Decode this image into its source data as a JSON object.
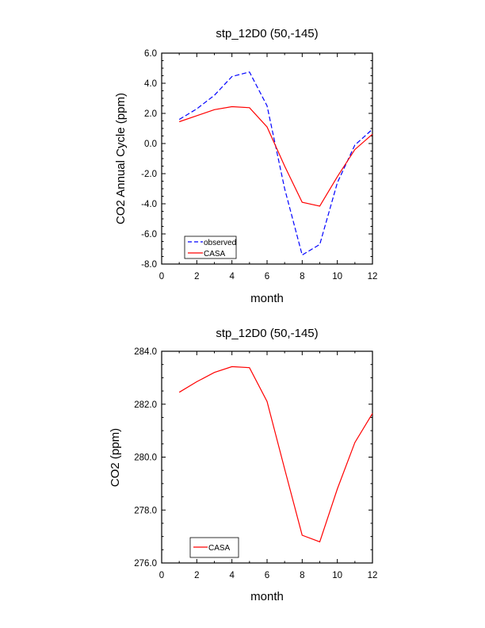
{
  "chart_data": [
    {
      "type": "line",
      "title": "stp_12D0 (50,-145)",
      "xlabel": "month",
      "ylabel": "CO2 Annual Cycle (ppm)",
      "xlim": [
        0,
        12
      ],
      "ylim": [
        -8,
        6
      ],
      "x_ticks": [
        "0",
        "2",
        "4",
        "6",
        "8",
        "10",
        "12"
      ],
      "y_ticks": [
        "-8.0",
        "-6.0",
        "-4.0",
        "-2.0",
        "0.0",
        "2.0",
        "4.0",
        "6.0"
      ],
      "x": [
        1,
        2,
        3,
        4,
        5,
        6,
        7,
        8,
        9,
        10,
        11,
        12
      ],
      "series": [
        {
          "name": "observed",
          "color": "#0000ff",
          "dash": "dashed",
          "values": [
            1.6,
            2.3,
            3.2,
            4.45,
            4.75,
            2.5,
            -3.0,
            -7.4,
            -6.7,
            -2.6,
            -0.1,
            0.95
          ]
        },
        {
          "name": "CASA",
          "color": "#ff0000",
          "dash": "solid",
          "values": [
            1.45,
            1.85,
            2.25,
            2.45,
            2.38,
            1.1,
            -1.5,
            -3.9,
            -4.15,
            -2.2,
            -0.4,
            0.62
          ]
        }
      ],
      "legend": "bottom-left"
    },
    {
      "type": "line",
      "title": "stp_12D0 (50,-145)",
      "xlabel": "month",
      "ylabel": "CO2 (ppm)",
      "xlim": [
        0,
        12
      ],
      "ylim": [
        276,
        284
      ],
      "x_ticks": [
        "0",
        "2",
        "4",
        "6",
        "8",
        "10",
        "12"
      ],
      "y_ticks": [
        "276.0",
        "278.0",
        "280.0",
        "282.0",
        "284.0"
      ],
      "x": [
        1,
        2,
        3,
        4,
        5,
        6,
        7,
        8,
        9,
        10,
        11,
        12
      ],
      "series": [
        {
          "name": "CASA",
          "color": "#ff0000",
          "dash": "solid",
          "values": [
            282.45,
            282.85,
            283.2,
            283.42,
            283.38,
            282.1,
            279.55,
            277.05,
            276.8,
            278.8,
            280.55,
            281.65
          ]
        }
      ],
      "legend": "bottom-left"
    }
  ]
}
